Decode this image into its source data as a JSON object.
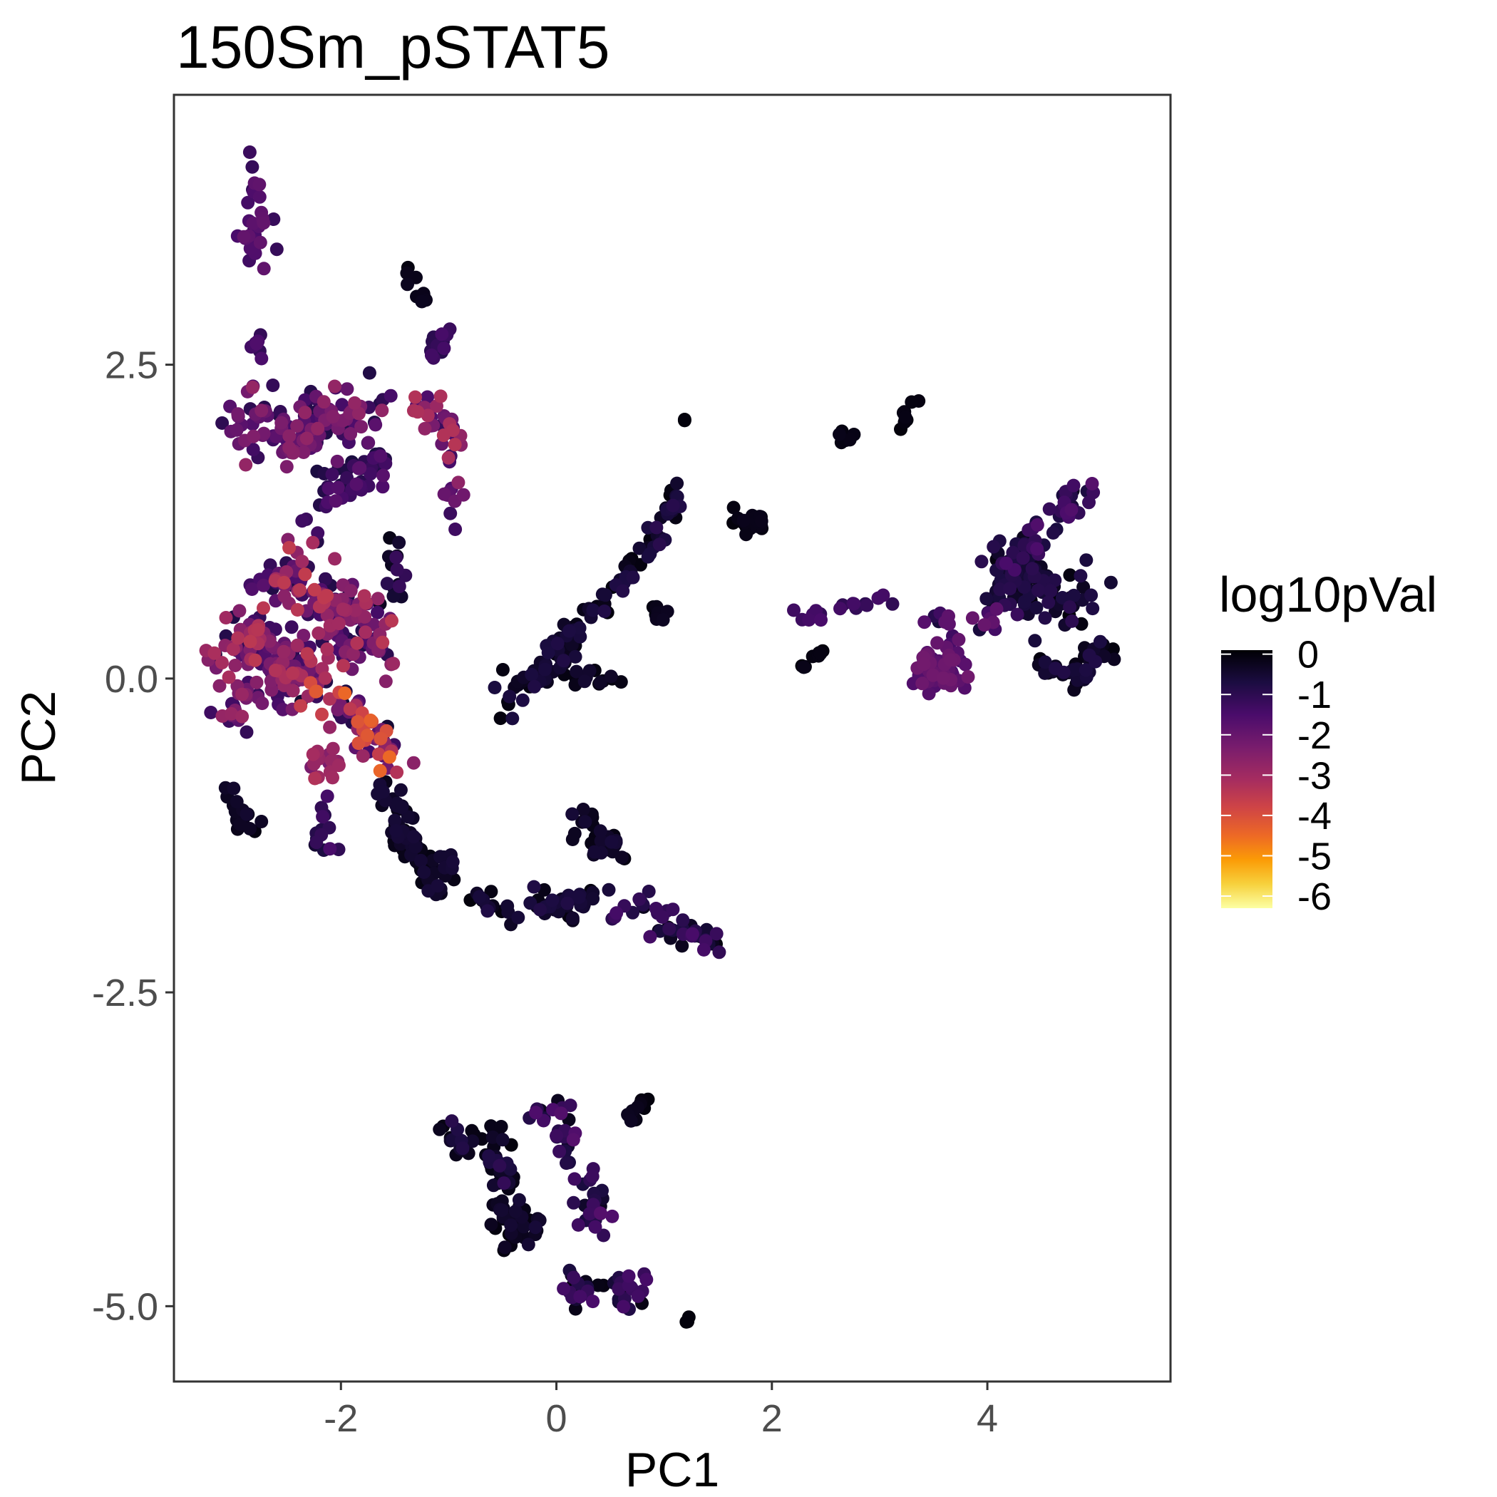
{
  "chart_data": {
    "type": "scatter",
    "title": "150Sm_pSTAT5",
    "xlabel": "PC1",
    "ylabel": "PC2",
    "xlim": [
      -3.55,
      5.7
    ],
    "ylim": [
      -5.6,
      4.65
    ],
    "x_ticks": [
      -2,
      0,
      2,
      4
    ],
    "y_ticks": [
      2.5,
      0.0,
      -2.5,
      -5.0
    ],
    "x_tick_labels": [
      "-2",
      "0",
      "2",
      "4"
    ],
    "y_tick_labels": [
      "2.5",
      "0.0",
      "-2.5",
      "-5.0"
    ],
    "grid": false,
    "legend": {
      "title": "log10pVal",
      "position": "right",
      "type": "colorbar",
      "colormap": "inferno (reversed)",
      "range": [
        -6.3,
        0.1
      ],
      "breaks": [
        0,
        -1,
        -2,
        -3,
        -4,
        -5,
        -6
      ],
      "break_labels": [
        "0",
        "-1",
        "-2",
        "-3",
        "-4",
        "-5",
        "-6"
      ],
      "color_stops": [
        {
          "value": 0.1,
          "color": "#000004"
        },
        {
          "value": -0.7,
          "color": "#1b0c41"
        },
        {
          "value": -1.5,
          "color": "#4a0c6b"
        },
        {
          "value": -2.3,
          "color": "#781c6d"
        },
        {
          "value": -3.1,
          "color": "#a52c60"
        },
        {
          "value": -3.8,
          "color": "#cf4446"
        },
        {
          "value": -4.5,
          "color": "#ed6925"
        },
        {
          "value": -5.1,
          "color": "#fb9b06"
        },
        {
          "value": -5.7,
          "color": "#f7d13d"
        },
        {
          "value": -6.3,
          "color": "#fcffa4"
        }
      ]
    },
    "clusters": [
      {
        "path": [
          [
            -2.75,
            4.2
          ],
          [
            -2.8,
            3.6
          ],
          [
            -2.8,
            3.3
          ]
        ],
        "n": 30,
        "spread": 0.08,
        "pval": [
          -2.0,
          -1.1
        ]
      },
      {
        "path": [
          [
            -2.75,
            2.7
          ],
          [
            -2.75,
            2.6
          ]
        ],
        "n": 8,
        "spread": 0.05,
        "pval": [
          -1.8,
          -1.0
        ]
      },
      {
        "path": [
          [
            -1.45,
            3.3
          ],
          [
            -1.2,
            2.95
          ]
        ],
        "n": 9,
        "spread": 0.05,
        "pval": [
          0.0,
          -0.3
        ]
      },
      {
        "path": [
          [
            -2.9,
            2.1
          ],
          [
            -2.5,
            1.9
          ],
          [
            -2.2,
            2.1
          ],
          [
            -1.7,
            2.1
          ]
        ],
        "n": 130,
        "spread": 0.13,
        "pval": [
          -2.8,
          -0.8
        ]
      },
      {
        "path": [
          [
            -2.3,
            1.3
          ],
          [
            -1.9,
            1.6
          ],
          [
            -1.6,
            1.75
          ]
        ],
        "n": 50,
        "spread": 0.1,
        "pval": [
          -1.8,
          -0.6
        ]
      },
      {
        "path": [
          [
            -1.3,
            2.6
          ],
          [
            -1.0,
            2.7
          ]
        ],
        "n": 12,
        "spread": 0.05,
        "pval": [
          -1.5,
          -0.9
        ]
      },
      {
        "path": [
          [
            -1.3,
            2.2
          ],
          [
            -1.0,
            2.0
          ],
          [
            -0.9,
            1.8
          ]
        ],
        "n": 35,
        "spread": 0.08,
        "pval": [
          -3.5,
          -1.0
        ]
      },
      {
        "path": [
          [
            -1.0,
            1.5
          ],
          [
            -0.8,
            1.2
          ]
        ],
        "n": 8,
        "spread": 0.07,
        "pval": [
          -2.2,
          -1.2
        ]
      },
      {
        "path": [
          [
            -1.5,
            1.2
          ],
          [
            -1.55,
            0.6
          ]
        ],
        "n": 15,
        "spread": 0.07,
        "pval": [
          -1.2,
          0.0
        ]
      },
      {
        "path": [
          [
            -2.6,
            0.9
          ],
          [
            -2.1,
            0.55
          ],
          [
            -1.7,
            0.25
          ]
        ],
        "n": 150,
        "spread": 0.15,
        "pval": [
          -3.6,
          -0.8
        ]
      },
      {
        "path": [
          [
            -3.2,
            0.15
          ],
          [
            -2.8,
            0.35
          ],
          [
            -2.6,
            0.2
          ],
          [
            -2.35,
            0.05
          ]
        ],
        "n": 110,
        "spread": 0.12,
        "pval": [
          -3.5,
          -0.7
        ]
      },
      {
        "path": [
          [
            -3.1,
            -0.3
          ],
          [
            -2.7,
            -0.1
          ],
          [
            -2.45,
            0.05
          ]
        ],
        "n": 50,
        "spread": 0.1,
        "pval": [
          -3.0,
          -1.0
        ]
      },
      {
        "path": [
          [
            -2.3,
            0.0
          ],
          [
            -2.0,
            -0.3
          ],
          [
            -1.7,
            -0.45
          ],
          [
            -1.5,
            -0.65
          ]
        ],
        "n": 70,
        "spread": 0.1,
        "pval": [
          -4.5,
          -0.5
        ]
      },
      {
        "path": [
          [
            -2.2,
            -0.6
          ],
          [
            -2.15,
            -0.75
          ]
        ],
        "n": 18,
        "spread": 0.07,
        "pval": [
          -3.5,
          -2.0
        ]
      },
      {
        "path": [
          [
            -3.05,
            -0.8
          ],
          [
            -3.0,
            -1.1
          ],
          [
            -2.8,
            -1.15
          ]
        ],
        "n": 20,
        "spread": 0.05,
        "pval": [
          -0.5,
          0.0
        ]
      },
      {
        "path": [
          [
            -2.2,
            -1.0
          ],
          [
            -2.15,
            -1.4
          ]
        ],
        "n": 15,
        "spread": 0.07,
        "pval": [
          -1.5,
          -0.5
        ]
      },
      {
        "path": [
          [
            -1.6,
            -0.8
          ],
          [
            -1.4,
            -1.2
          ],
          [
            -1.25,
            -1.45
          ],
          [
            -1.0,
            -1.6
          ]
        ],
        "n": 80,
        "spread": 0.07,
        "pval": [
          -0.6,
          0.0
        ]
      },
      {
        "path": [
          [
            -0.8,
            -1.75
          ],
          [
            -0.4,
            -1.85
          ],
          [
            0.0,
            -1.8
          ],
          [
            0.3,
            -1.75
          ]
        ],
        "n": 55,
        "spread": 0.06,
        "pval": [
          -0.8,
          0.0
        ]
      },
      {
        "path": [
          [
            0.4,
            -1.75
          ],
          [
            0.9,
            -1.9
          ],
          [
            1.3,
            -2.05
          ],
          [
            1.55,
            -2.2
          ]
        ],
        "n": 45,
        "spread": 0.07,
        "pval": [
          -1.5,
          0.0
        ]
      },
      {
        "path": [
          [
            0.15,
            -1.1
          ],
          [
            0.4,
            -1.25
          ],
          [
            0.55,
            -1.35
          ]
        ],
        "n": 30,
        "spread": 0.08,
        "pval": [
          -0.6,
          0.0
        ]
      },
      {
        "path": [
          [
            -0.55,
            -0.2
          ],
          [
            -0.2,
            0.0
          ],
          [
            0.1,
            0.3
          ],
          [
            0.4,
            0.6
          ]
        ],
        "n": 70,
        "spread": 0.07,
        "pval": [
          -0.8,
          0.0
        ]
      },
      {
        "path": [
          [
            0.1,
            0.05
          ],
          [
            0.6,
            0.0
          ]
        ],
        "n": 15,
        "spread": 0.05,
        "pval": [
          -0.5,
          0.0
        ]
      },
      {
        "path": [
          [
            0.4,
            0.6
          ],
          [
            0.8,
            0.95
          ],
          [
            1.0,
            1.25
          ],
          [
            1.1,
            1.5
          ]
        ],
        "n": 45,
        "spread": 0.05,
        "pval": [
          -1.0,
          0.0
        ]
      },
      {
        "path": [
          [
            0.9,
            0.55
          ],
          [
            1.1,
            0.45
          ]
        ],
        "n": 8,
        "spread": 0.05,
        "pval": [
          -0.3,
          0.0
        ]
      },
      {
        "path": [
          [
            1.65,
            1.25
          ],
          [
            2.0,
            1.25
          ]
        ],
        "n": 22,
        "spread": 0.04,
        "pval": [
          -0.2,
          0.0
        ]
      },
      {
        "path": [
          [
            2.2,
            0.5
          ],
          [
            2.5,
            0.5
          ]
        ],
        "n": 8,
        "spread": 0.03,
        "pval": [
          -1.5,
          -1.1
        ]
      },
      {
        "path": [
          [
            2.7,
            0.55
          ],
          [
            3.15,
            0.65
          ]
        ],
        "n": 10,
        "spread": 0.03,
        "pval": [
          -1.4,
          -1.0
        ]
      },
      {
        "path": [
          [
            2.2,
            0.1
          ],
          [
            2.5,
            0.2
          ]
        ],
        "n": 8,
        "spread": 0.03,
        "pval": [
          -0.2,
          0.0
        ]
      },
      {
        "path": [
          [
            2.65,
            1.9
          ],
          [
            2.8,
            1.95
          ]
        ],
        "n": 6,
        "spread": 0.03,
        "pval": [
          -0.2,
          0.0
        ]
      },
      {
        "path": [
          [
            3.2,
            2.0
          ],
          [
            3.35,
            2.2
          ]
        ],
        "n": 8,
        "spread": 0.04,
        "pval": [
          -0.2,
          0.0
        ]
      },
      {
        "path": [
          [
            3.4,
            0.05
          ],
          [
            3.55,
            0.05
          ],
          [
            3.7,
            0.1
          ]
        ],
        "n": 60,
        "spread": 0.08,
        "pval": [
          -2.2,
          -1.4
        ]
      },
      {
        "path": [
          [
            3.5,
            0.45
          ],
          [
            3.85,
            0.45
          ],
          [
            4.2,
            0.5
          ]
        ],
        "n": 20,
        "spread": 0.08,
        "pval": [
          -2.0,
          -0.6
        ]
      },
      {
        "path": [
          [
            4.1,
            0.8
          ],
          [
            4.3,
            0.85
          ],
          [
            4.5,
            0.7
          ],
          [
            4.9,
            0.6
          ]
        ],
        "n": 120,
        "spread": 0.12,
        "pval": [
          -1.0,
          0.0
        ]
      },
      {
        "path": [
          [
            4.25,
            1.0
          ],
          [
            4.6,
            1.25
          ],
          [
            4.9,
            1.5
          ]
        ],
        "n": 40,
        "spread": 0.08,
        "pval": [
          -1.8,
          -0.2
        ]
      },
      {
        "path": [
          [
            4.5,
            0.1
          ],
          [
            4.85,
            0.0
          ],
          [
            5.1,
            0.25
          ]
        ],
        "n": 40,
        "spread": 0.08,
        "pval": [
          -0.8,
          0.0
        ]
      },
      {
        "path": [
          [
            -1.0,
            -3.6
          ],
          [
            -0.7,
            -3.8
          ],
          [
            -0.4,
            -4.0
          ]
        ],
        "n": 25,
        "spread": 0.07,
        "pval": [
          -1.2,
          0.0
        ]
      },
      {
        "path": [
          [
            -0.6,
            -3.6
          ],
          [
            -0.5,
            -3.95
          ],
          [
            -0.45,
            -4.35
          ],
          [
            -0.2,
            -4.4
          ]
        ],
        "n": 70,
        "spread": 0.08,
        "pval": [
          -0.6,
          0.0
        ]
      },
      {
        "path": [
          [
            -0.1,
            -3.45
          ],
          [
            0.05,
            -3.6
          ],
          [
            0.35,
            -4.2
          ],
          [
            0.4,
            -4.45
          ]
        ],
        "n": 50,
        "spread": 0.08,
        "pval": [
          -1.8,
          -0.2
        ]
      },
      {
        "path": [
          [
            0.1,
            -4.85
          ],
          [
            0.5,
            -4.9
          ],
          [
            0.8,
            -4.85
          ]
        ],
        "n": 40,
        "spread": 0.06,
        "pval": [
          -1.5,
          0.0
        ]
      },
      {
        "path": [
          [
            0.7,
            -3.5
          ],
          [
            0.8,
            -3.4
          ]
        ],
        "n": 10,
        "spread": 0.04,
        "pval": [
          -0.3,
          0.0
        ]
      },
      {
        "path": [
          [
            1.2,
            -5.05
          ],
          [
            1.2,
            -5.12
          ]
        ],
        "n": 3,
        "spread": 0.02,
        "pval": [
          0.0,
          0.0
        ]
      },
      {
        "path": [
          [
            1.2,
            2.1
          ],
          [
            1.2,
            2.05
          ]
        ],
        "n": 2,
        "spread": 0.01,
        "pval": [
          0.0,
          0.0
        ]
      }
    ]
  }
}
